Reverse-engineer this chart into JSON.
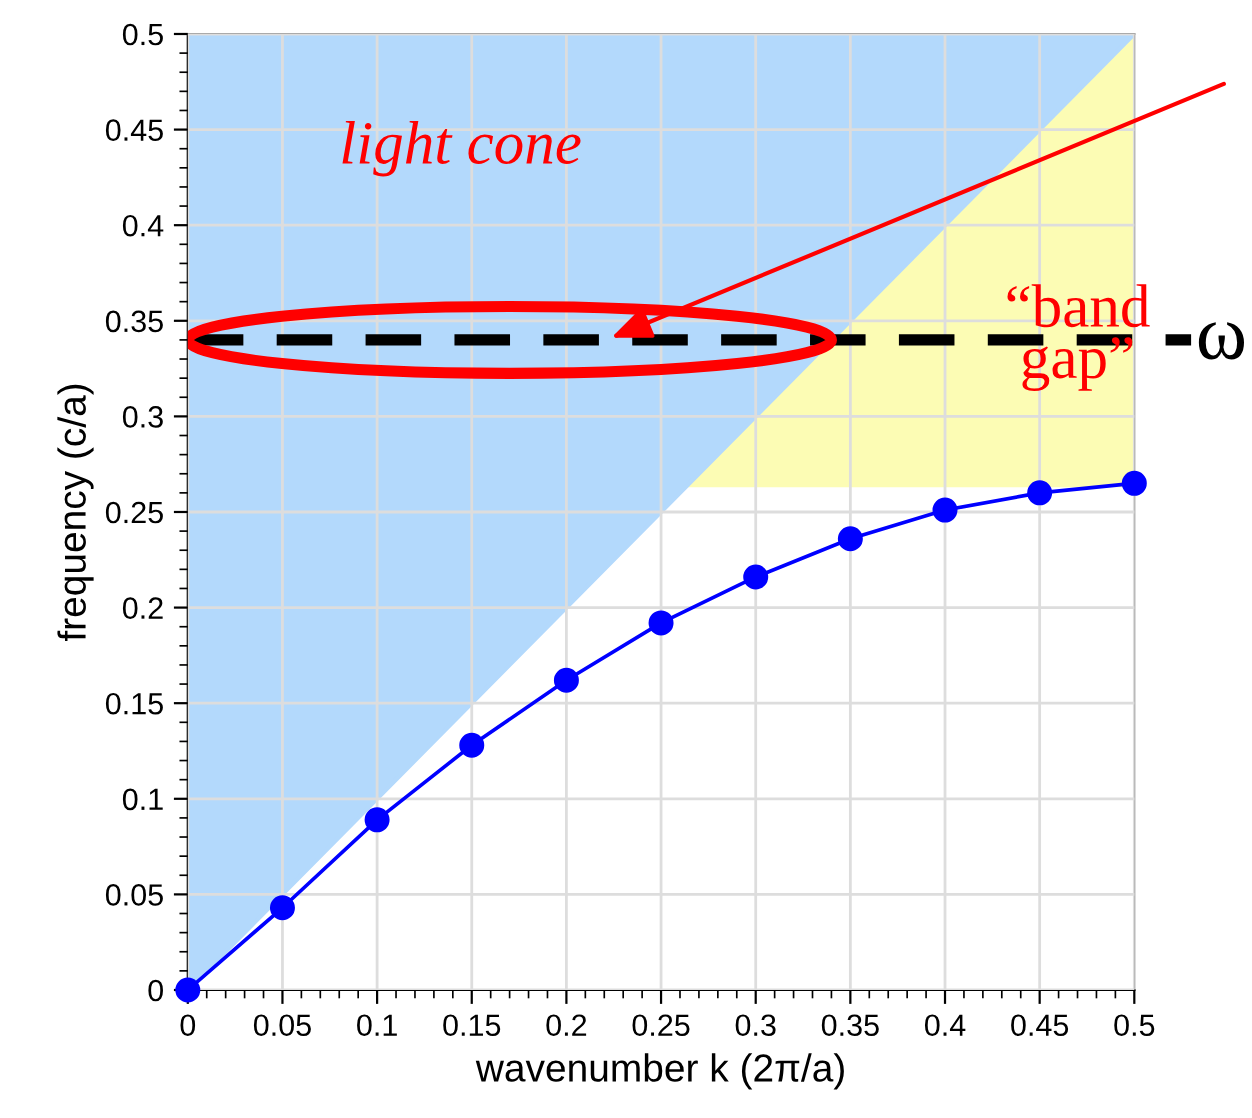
{
  "chart_data": {
    "type": "line",
    "xlabel": "wavenumber k (2π/a)",
    "ylabel": "frequency (c/a)",
    "xlim": [
      0,
      0.5
    ],
    "ylim": [
      0,
      0.5
    ],
    "xticks": [
      0,
      0.05,
      0.1,
      0.15,
      0.2,
      0.25,
      0.3,
      0.35,
      0.4,
      0.45,
      0.5
    ],
    "yticks": [
      0,
      0.05,
      0.1,
      0.15,
      0.2,
      0.25,
      0.3,
      0.35,
      0.4,
      0.45,
      0.5
    ],
    "grid": true,
    "line_style": "solid",
    "x": [
      0,
      0.05,
      0.1,
      0.15,
      0.2,
      0.25,
      0.3,
      0.35,
      0.4,
      0.45,
      0.5
    ],
    "series": [
      {
        "type": "area",
        "color": "#b3d9fc",
        "x": [
          0,
          0.5
        ],
        "values": [
          0,
          0.5
        ]
      },
      {
        "marker": "circle",
        "color": "#0000ff",
        "values": [
          0,
          0.043,
          0.089,
          0.128,
          0.162,
          0.192,
          0.216,
          0.236,
          0.251,
          0.26,
          0.265
        ]
      }
    ],
    "bands": [
      {
        "axis": "y",
        "from": 0.263,
        "to": 0.5,
        "color": "#fcfcb4",
        "label": "“band\ngap”"
      }
    ],
    "ref_lines": [
      {
        "axis": "y",
        "value": 0.34,
        "label": "ω",
        "color": "#000000",
        "line_style": "dashed"
      }
    ],
    "annotations": [
      "light cone"
    ]
  }
}
